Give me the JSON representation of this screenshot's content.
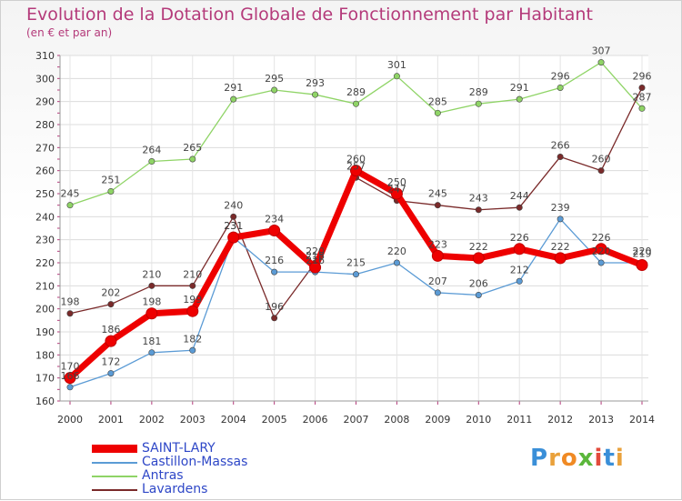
{
  "title": "Evolution de la Dotation Globale de Fonctionnement par Habitant",
  "subtitle": "(en € et par an)",
  "logo": "Proxiti",
  "chart_data": {
    "type": "line",
    "x": [
      "2000",
      "2001",
      "2002",
      "2003",
      "2004",
      "2005",
      "2006",
      "2007",
      "2008",
      "2009",
      "2010",
      "2011",
      "2012",
      "2013",
      "2014"
    ],
    "ylim": [
      160,
      310
    ],
    "yticks": [
      160,
      170,
      180,
      190,
      200,
      210,
      220,
      230,
      240,
      250,
      260,
      270,
      280,
      290,
      300,
      310
    ],
    "grid": true,
    "legend_position": "bottom-left",
    "series": [
      {
        "name": "SAINT-LARY",
        "color": "#ee0000",
        "values": [
          170,
          186,
          198,
          199,
          231,
          234,
          218,
          260,
          250,
          223,
          222,
          226,
          222,
          226,
          219
        ]
      },
      {
        "name": "Castillon-Massas",
        "color": "#5b9bd5",
        "values": [
          166,
          172,
          181,
          182,
          231,
          216,
          216,
          215,
          220,
          207,
          206,
          212,
          239,
          220,
          220
        ]
      },
      {
        "name": "Antras",
        "color": "#8fd466",
        "values": [
          245,
          251,
          264,
          265,
          291,
          295,
          293,
          289,
          301,
          285,
          289,
          291,
          296,
          307,
          287
        ]
      },
      {
        "name": "Lavardens",
        "color": "#7a2a2a",
        "values": [
          198,
          202,
          210,
          210,
          240,
          196,
          220,
          257,
          247,
          245,
          243,
          244,
          266,
          260,
          296
        ]
      }
    ]
  }
}
